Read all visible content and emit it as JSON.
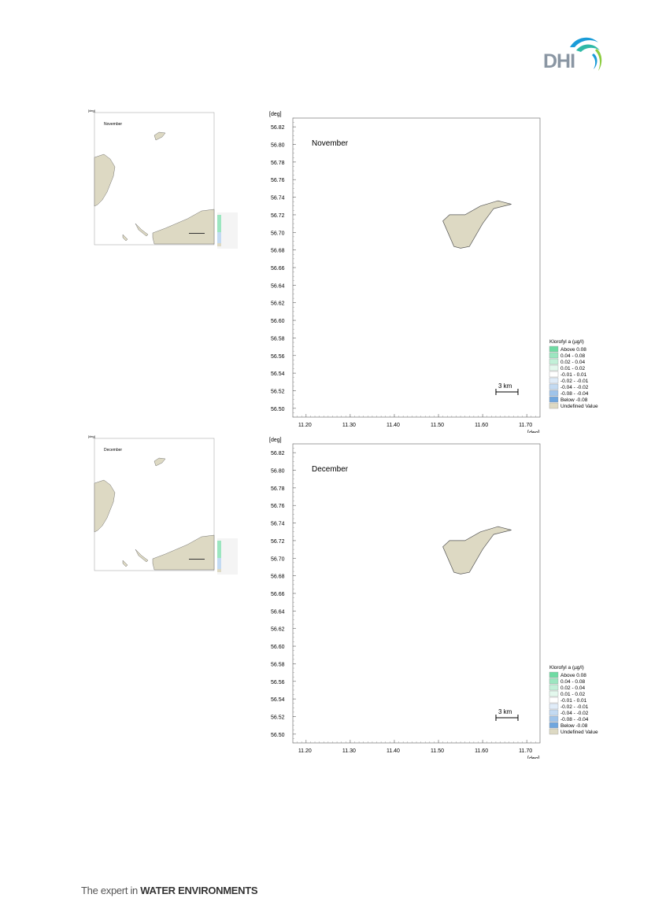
{
  "brand": {
    "logo_text": "DHI",
    "tagline_prefix": "The expert in ",
    "tagline_bold": "WATER ENVIRONMENTS"
  },
  "colors": {
    "land": "#ddd9c3",
    "frame": "#888888"
  },
  "panels": [
    {
      "month": "November",
      "axis_unit": "[deg]",
      "y_ticks": [
        "56.82",
        "56.80",
        "56.78",
        "56.76",
        "56.74",
        "56.72",
        "56.70",
        "56.68",
        "56.66",
        "56.64",
        "56.62",
        "56.60",
        "56.58",
        "56.56",
        "56.54",
        "56.52",
        "56.50"
      ],
      "x_ticks": [
        "11.20",
        "11.30",
        "11.40",
        "11.50",
        "11.60",
        "11.70"
      ],
      "scale_label": "3 km",
      "legend_title": "Klorofyl a (µg/l)",
      "legend": [
        {
          "label": "Above  0.08",
          "color": "#6fdba3"
        },
        {
          "label": " 0.04 -  0.08",
          "color": "#9ce6c0"
        },
        {
          "label": " 0.02 -  0.04",
          "color": "#c2f0d8"
        },
        {
          "label": " 0.01 -  0.02",
          "color": "#e3f8ed"
        },
        {
          "label": "-0.01 -  0.01",
          "color": "#ffffff"
        },
        {
          "label": "-0.02 - -0.01",
          "color": "#e0ecf8"
        },
        {
          "label": "-0.04 - -0.02",
          "color": "#c3daf2"
        },
        {
          "label": "-0.08 - -0.04",
          "color": "#9fc4ea"
        },
        {
          "label": "Below -0.08",
          "color": "#6fa6de"
        },
        {
          "label": "Undefined Value",
          "color": "#ddd9c3"
        }
      ]
    },
    {
      "month": "December",
      "axis_unit": "[deg]",
      "y_ticks": [
        "56.82",
        "56.80",
        "56.78",
        "56.76",
        "56.74",
        "56.72",
        "56.70",
        "56.68",
        "56.66",
        "56.64",
        "56.62",
        "56.60",
        "56.58",
        "56.56",
        "56.54",
        "56.52",
        "56.50"
      ],
      "x_ticks": [
        "11.20",
        "11.30",
        "11.40",
        "11.50",
        "11.60",
        "11.70"
      ],
      "scale_label": "3 km",
      "legend_title": "Klorofyl a (µg/l)",
      "legend": [
        {
          "label": "Above  0.08",
          "color": "#6fdba3"
        },
        {
          "label": " 0.04 -  0.08",
          "color": "#9ce6c0"
        },
        {
          "label": " 0.02 -  0.04",
          "color": "#c2f0d8"
        },
        {
          "label": " 0.01 -  0.02",
          "color": "#e3f8ed"
        },
        {
          "label": "-0.01 -  0.01",
          "color": "#ffffff"
        },
        {
          "label": "-0.02 - -0.01",
          "color": "#e0ecf8"
        },
        {
          "label": "-0.04 - -0.02",
          "color": "#c3daf2"
        },
        {
          "label": "-0.08 - -0.04",
          "color": "#9fc4ea"
        },
        {
          "label": "Below -0.08",
          "color": "#6fa6de"
        },
        {
          "label": "Undefined Value",
          "color": "#ddd9c3"
        }
      ]
    }
  ]
}
